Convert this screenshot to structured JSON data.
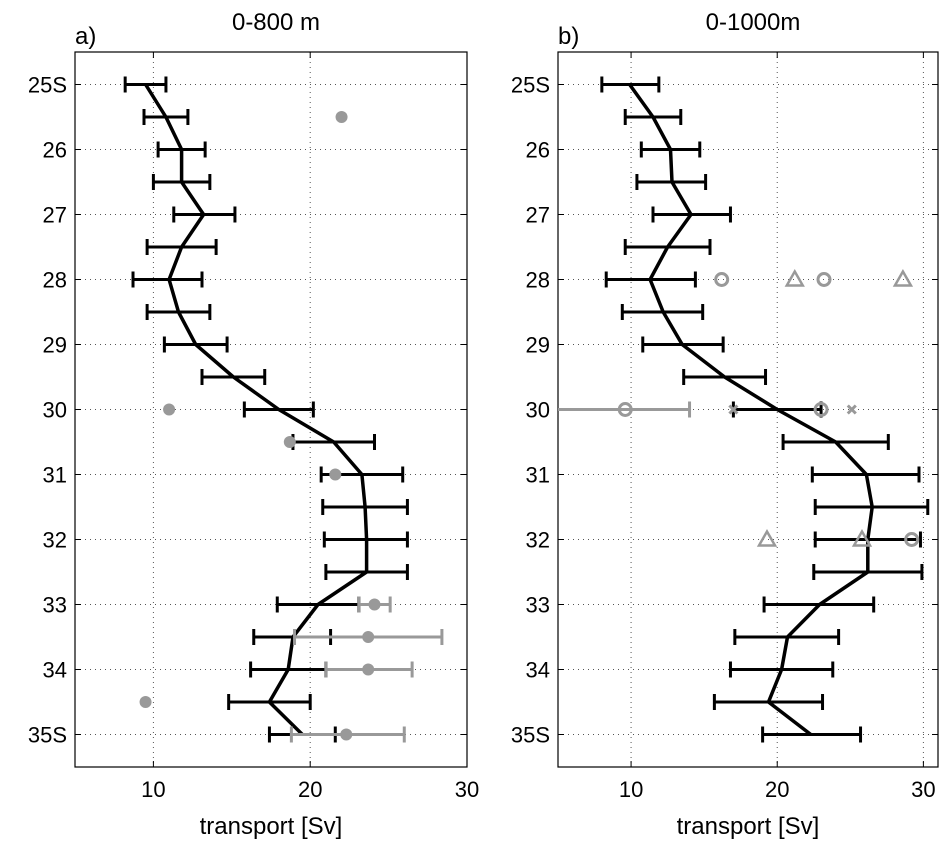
{
  "chart_data": [
    {
      "type": "line",
      "panel_label": "a)",
      "title": "0-800 m",
      "xlabel": "transport [Sv]",
      "ylabel": "",
      "xlim": [
        5,
        30
      ],
      "ylim": [
        25,
        35.5
      ],
      "grid": true,
      "x_ticks": [
        10,
        20,
        30
      ],
      "x_tick_labels": [
        "10",
        "20",
        "30"
      ],
      "y_ticks": [
        25,
        26,
        27,
        28,
        29,
        30,
        31,
        32,
        33,
        34,
        35
      ],
      "y_tick_labels": [
        "25S",
        "26",
        "27",
        "28",
        "29",
        "30",
        "31",
        "32",
        "33",
        "34",
        "35S"
      ],
      "series": [
        {
          "kind": "line_with_errorbars",
          "color": "#000000",
          "points": [
            {
              "lat": 25.0,
              "x": 9.5,
              "xmin": 8.2,
              "xmax": 10.8
            },
            {
              "lat": 25.5,
              "x": 10.8,
              "xmin": 9.4,
              "xmax": 12.2
            },
            {
              "lat": 26.0,
              "x": 11.8,
              "xmin": 10.3,
              "xmax": 13.3
            },
            {
              "lat": 26.5,
              "x": 11.8,
              "xmin": 10.0,
              "xmax": 13.6
            },
            {
              "lat": 27.0,
              "x": 13.2,
              "xmin": 11.3,
              "xmax": 15.2
            },
            {
              "lat": 27.5,
              "x": 11.8,
              "xmin": 9.6,
              "xmax": 14.0
            },
            {
              "lat": 28.0,
              "x": 11.0,
              "xmin": 8.7,
              "xmax": 13.1
            },
            {
              "lat": 28.5,
              "x": 11.6,
              "xmin": 9.6,
              "xmax": 13.6
            },
            {
              "lat": 29.0,
              "x": 12.7,
              "xmin": 10.7,
              "xmax": 14.7
            },
            {
              "lat": 29.5,
              "x": 15.1,
              "xmin": 13.1,
              "xmax": 17.1
            },
            {
              "lat": 30.0,
              "x": 18.0,
              "xmin": 15.8,
              "xmax": 20.2
            },
            {
              "lat": 30.5,
              "x": 21.5,
              "xmin": 18.9,
              "xmax": 24.1
            },
            {
              "lat": 31.0,
              "x": 23.3,
              "xmin": 20.7,
              "xmax": 25.9
            },
            {
              "lat": 31.5,
              "x": 23.5,
              "xmin": 20.8,
              "xmax": 26.2
            },
            {
              "lat": 32.0,
              "x": 23.6,
              "xmin": 20.9,
              "xmax": 26.2
            },
            {
              "lat": 32.5,
              "x": 23.6,
              "xmin": 21.0,
              "xmax": 26.2
            },
            {
              "lat": 33.0,
              "x": 20.5,
              "xmin": 17.9,
              "xmax": 23.1
            },
            {
              "lat": 33.5,
              "x": 18.9,
              "xmin": 16.4,
              "xmax": 21.3
            },
            {
              "lat": 34.0,
              "x": 18.6,
              "xmin": 16.2,
              "xmax": 21.0
            },
            {
              "lat": 34.5,
              "x": 17.4,
              "xmin": 14.8,
              "xmax": 20.0
            },
            {
              "lat": 35.0,
              "x": 19.5,
              "xmin": 17.4,
              "xmax": 21.6
            }
          ]
        },
        {
          "kind": "markers",
          "color": "#999999",
          "points": [
            {
              "lat": 25.5,
              "x": 22.0,
              "marker": "dot"
            },
            {
              "lat": 30.0,
              "x": 11.0,
              "marker": "dot"
            },
            {
              "lat": 30.5,
              "x": 18.7,
              "marker": "dot"
            },
            {
              "lat": 31.0,
              "x": 21.6,
              "marker": "dot"
            },
            {
              "lat": 33.0,
              "x": 24.1,
              "marker": "dot",
              "xmin": 23.1,
              "xmax": 25.1
            },
            {
              "lat": 33.5,
              "x": 23.7,
              "marker": "dot",
              "xmin": 19.0,
              "xmax": 28.4
            },
            {
              "lat": 34.0,
              "x": 23.7,
              "marker": "dot",
              "xmin": 21.0,
              "xmax": 26.5
            },
            {
              "lat": 34.5,
              "x": 9.5,
              "marker": "dot"
            },
            {
              "lat": 35.0,
              "x": 22.3,
              "marker": "dot",
              "xmin": 18.8,
              "xmax": 26.0
            }
          ]
        }
      ]
    },
    {
      "type": "line",
      "panel_label": "b)",
      "title": "0-1000m",
      "xlabel": "transport [Sv]",
      "ylabel": "",
      "xlim": [
        5,
        31
      ],
      "ylim": [
        25,
        35.5
      ],
      "grid": true,
      "x_ticks": [
        10,
        20,
        30
      ],
      "x_tick_labels": [
        "10",
        "20",
        "30"
      ],
      "y_ticks": [
        25,
        26,
        27,
        28,
        29,
        30,
        31,
        32,
        33,
        34,
        35
      ],
      "y_tick_labels": [
        "25S",
        "26",
        "27",
        "28",
        "29",
        "30",
        "31",
        "32",
        "33",
        "34",
        "35S"
      ],
      "series": [
        {
          "kind": "line_with_errorbars",
          "color": "#000000",
          "points": [
            {
              "lat": 25.0,
              "x": 9.9,
              "xmin": 8.0,
              "xmax": 11.9
            },
            {
              "lat": 25.5,
              "x": 11.5,
              "xmin": 9.6,
              "xmax": 13.4
            },
            {
              "lat": 26.0,
              "x": 12.7,
              "xmin": 10.7,
              "xmax": 14.7
            },
            {
              "lat": 26.5,
              "x": 12.8,
              "xmin": 10.4,
              "xmax": 15.1
            },
            {
              "lat": 27.0,
              "x": 14.1,
              "xmin": 11.5,
              "xmax": 16.8
            },
            {
              "lat": 27.5,
              "x": 12.5,
              "xmin": 9.6,
              "xmax": 15.4
            },
            {
              "lat": 28.0,
              "x": 11.3,
              "xmin": 8.3,
              "xmax": 14.4
            },
            {
              "lat": 28.5,
              "x": 12.2,
              "xmin": 9.4,
              "xmax": 14.9
            },
            {
              "lat": 29.0,
              "x": 13.5,
              "xmin": 10.8,
              "xmax": 16.3
            },
            {
              "lat": 29.5,
              "x": 16.4,
              "xmin": 13.6,
              "xmax": 19.2
            },
            {
              "lat": 30.0,
              "x": 20.0,
              "xmin": 17.0,
              "xmax": 23.0
            },
            {
              "lat": 30.5,
              "x": 24.0,
              "xmin": 20.4,
              "xmax": 27.6
            },
            {
              "lat": 31.0,
              "x": 26.1,
              "xmin": 22.4,
              "xmax": 29.7
            },
            {
              "lat": 31.5,
              "x": 26.5,
              "xmin": 22.6,
              "xmax": 30.3
            },
            {
              "lat": 32.0,
              "x": 26.2,
              "xmin": 22.6,
              "xmax": 29.8
            },
            {
              "lat": 32.5,
              "x": 26.2,
              "xmin": 22.5,
              "xmax": 29.9
            },
            {
              "lat": 33.0,
              "x": 22.9,
              "xmin": 19.1,
              "xmax": 26.6
            },
            {
              "lat": 33.5,
              "x": 20.7,
              "xmin": 17.1,
              "xmax": 24.2
            },
            {
              "lat": 34.0,
              "x": 20.3,
              "xmin": 16.8,
              "xmax": 23.8
            },
            {
              "lat": 34.5,
              "x": 19.4,
              "xmin": 15.7,
              "xmax": 23.1
            },
            {
              "lat": 35.0,
              "x": 22.3,
              "xmin": 19.0,
              "xmax": 25.7
            }
          ]
        },
        {
          "kind": "markers",
          "color": "#999999",
          "points": [
            {
              "lat": 28.0,
              "x": 16.2,
              "marker": "circle"
            },
            {
              "lat": 28.0,
              "x": 21.2,
              "marker": "triangle"
            },
            {
              "lat": 28.0,
              "x": 23.2,
              "marker": "circle"
            },
            {
              "lat": 28.0,
              "x": 28.6,
              "marker": "triangle"
            },
            {
              "lat": 30.0,
              "x": 9.6,
              "marker": "circle",
              "xmin": 5.0,
              "xmax": 14.0
            },
            {
              "lat": 30.0,
              "x": 17.0,
              "marker": "cross"
            },
            {
              "lat": 30.0,
              "x": 23.0,
              "marker": "circle"
            },
            {
              "lat": 30.0,
              "x": 25.1,
              "marker": "cross"
            },
            {
              "lat": 32.0,
              "x": 19.3,
              "marker": "triangle"
            },
            {
              "lat": 32.0,
              "x": 25.8,
              "marker": "triangle"
            },
            {
              "lat": 32.0,
              "x": 29.2,
              "marker": "circle"
            }
          ]
        }
      ]
    }
  ]
}
